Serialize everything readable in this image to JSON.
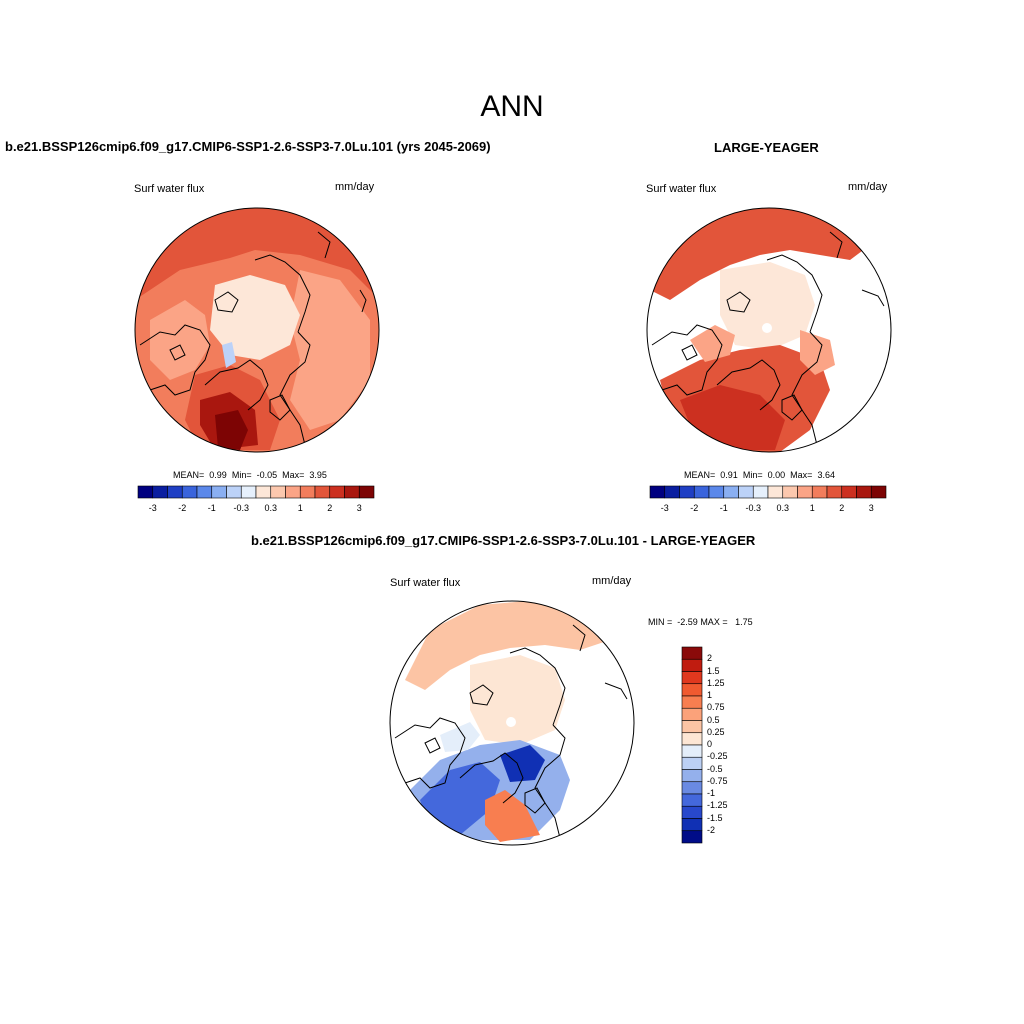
{
  "figure": {
    "title": "ANN",
    "panels": [
      {
        "title": "b.e21.BSSP126cmip6.f09_g17.CMIP6-SSP1-2.6-SSP3-7.0Lu.101 (yrs 2045-2069)",
        "variable": "Surf water flux",
        "units": "mm/day",
        "stats": {
          "mean_label": "MEAN=",
          "mean": "0.99",
          "min_label": "Min=",
          "min": "-0.05",
          "max_label": "Max=",
          "max": "3.95"
        }
      },
      {
        "title": "LARGE-YEAGER",
        "variable": "Surf water flux",
        "units": "mm/day",
        "stats": {
          "mean_label": "MEAN=",
          "mean": "0.91",
          "min_label": "Min=",
          "min": "0.00",
          "max_label": "Max=",
          "max": "3.64"
        }
      },
      {
        "title": "b.e21.BSSP126cmip6.f09_g17.CMIP6-SSP1-2.6-SSP3-7.0Lu.101 - LARGE-YEAGER",
        "variable": "Surf water flux",
        "units": "mm/day",
        "minmax": {
          "min_label": "MIN =",
          "min": "-2.59",
          "max_label": "MAX =",
          "max": "1.75"
        }
      }
    ],
    "colorbar_horizontal": {
      "colors": [
        "#000080",
        "#0a1ea0",
        "#1f3fc4",
        "#3a64dc",
        "#5b88ea",
        "#8aaff2",
        "#bcd2f8",
        "#e6f0fc",
        "#fde7d8",
        "#fcc8ae",
        "#fba486",
        "#f27d5c",
        "#e2553a",
        "#cc3020",
        "#a9170f",
        "#7d0404"
      ],
      "tick_labels": [
        "-3",
        "-2",
        "-1",
        "-0.3",
        "0.3",
        "1",
        "2",
        "3"
      ]
    },
    "colorbar_vertical": {
      "colors": [
        "#8a0a0a",
        "#c01c10",
        "#e0381e",
        "#f05a30",
        "#f87e50",
        "#fba27a",
        "#fcc4a4",
        "#fde6d4",
        "#e4eefa",
        "#bcd0f4",
        "#94b0ec",
        "#6a8ae2",
        "#4468dc",
        "#2848cc",
        "#1030b4",
        "#000c88"
      ],
      "labels": [
        "2",
        "1.5",
        "1.25",
        "1",
        "0.75",
        "0.5",
        "0.25",
        "0",
        "-0.25",
        "-0.5",
        "-0.75",
        "-1",
        "-1.25",
        "-1.5",
        "-2"
      ]
    },
    "map_colors": {
      "p1_base": "#f27d5c",
      "p1_light": "#fba486",
      "p1_pale": "#fde7d8",
      "p1_mid": "#e2553a",
      "p1_dark": "#a9170f",
      "p1_darkest": "#7d0404",
      "p1_ice": "#bcd2f8",
      "p2_base": "#f27d5c",
      "p2_pale": "#fde7d8",
      "p2_light": "#fba486",
      "p2_mid": "#e2553a",
      "p2_dark": "#cc3020",
      "p3_pale": "#fde6d4",
      "p3_light": "#fcc4a4",
      "p3_mid": "#f87e50",
      "p3_blue_light": "#94b0ec",
      "p3_blue": "#4468dc",
      "p3_blue_dark": "#1030b4",
      "p3_ice": "#e4eefa"
    }
  }
}
